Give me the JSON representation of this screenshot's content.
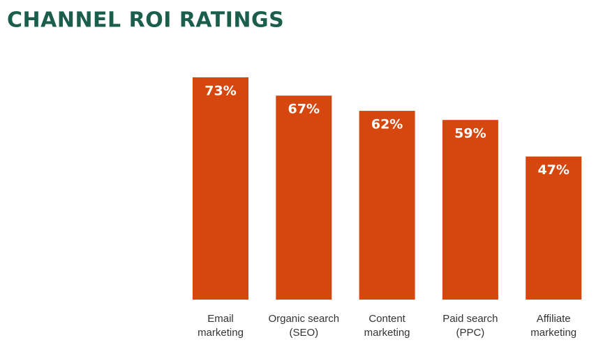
{
  "chart_data": {
    "type": "bar",
    "title": "CHANNEL ROI RATINGS",
    "categories": [
      [
        "Email",
        "marketing"
      ],
      [
        "Organic search",
        "(SEO)"
      ],
      [
        "Content",
        "marketing"
      ],
      [
        "Paid search",
        "(PPC)"
      ],
      [
        "Affiliate",
        "marketing"
      ]
    ],
    "values": [
      73,
      67,
      62,
      59,
      47
    ],
    "value_labels": [
      "73%",
      "67%",
      "62%",
      "59%",
      "47%"
    ],
    "color": "#d5470f"
  }
}
